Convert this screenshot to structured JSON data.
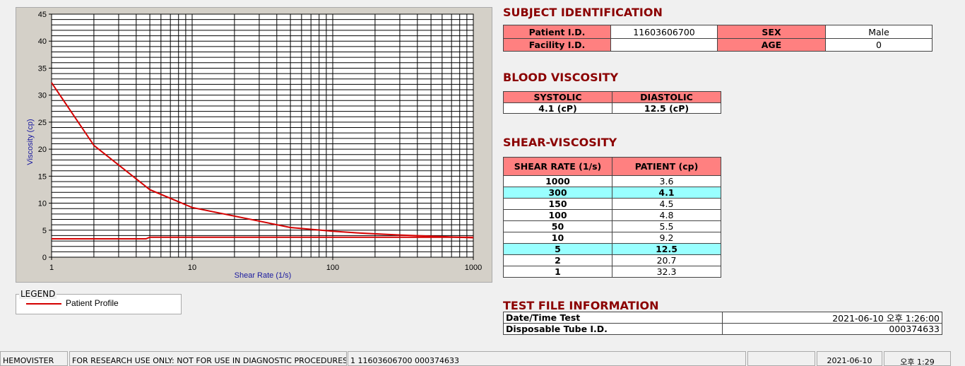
{
  "chart_data": {
    "type": "line",
    "y_label": "Viscosity (cp)",
    "x_label": "Shear Rate (1/s)",
    "xlog": true,
    "xlim": [
      1,
      1000
    ],
    "xticks": [
      1,
      10,
      100,
      1000
    ],
    "xminorticks": [
      2,
      3,
      4,
      5,
      6,
      7,
      8,
      9,
      20,
      30,
      40,
      50,
      60,
      70,
      80,
      90,
      200,
      300,
      400,
      500,
      600,
      700,
      800,
      900
    ],
    "ylim": [
      0,
      45
    ],
    "yticks": [
      0,
      5,
      10,
      15,
      20,
      25,
      30,
      35,
      40,
      45
    ],
    "yminorticks": [
      1,
      2,
      3,
      4,
      6,
      7,
      8,
      9,
      11,
      12,
      13,
      14,
      16,
      17,
      18,
      19,
      21,
      22,
      23,
      24,
      26,
      27,
      28,
      29,
      31,
      32,
      33,
      34,
      36,
      37,
      38,
      39,
      41,
      42,
      43,
      44
    ],
    "grid": true,
    "legend_title": "LEGEND",
    "series": [
      {
        "name": "Patient Profile",
        "color": "#d40000",
        "x": [
          1,
          2,
          5,
          10,
          50,
          100,
          150,
          300,
          1000
        ],
        "values": [
          32.3,
          20.7,
          12.5,
          9.2,
          5.5,
          4.8,
          4.5,
          4.1,
          3.6
        ]
      },
      {
        "color": "#d40000",
        "x": [
          1,
          4.7,
          5,
          1000
        ],
        "values": [
          3.4,
          3.4,
          3.7,
          3.7
        ]
      }
    ]
  },
  "subject": {
    "title": "SUBJECT IDENTIFICATION",
    "patient_label": "Patient I.D.",
    "patient_id": "11603606700",
    "sex_label": "SEX",
    "sex": "Male",
    "facility_label": "Facility I.D.",
    "age_label": "AGE",
    "age": 0
  },
  "blood": {
    "title": "BLOOD VISCOSITY",
    "headers": [
      "SYSTOLIC",
      "DIASTOLIC"
    ],
    "values": [
      "4.1 (cP)",
      "12.5 (cP)"
    ]
  },
  "shear": {
    "title": "SHEAR-VISCOSITY",
    "headers": [
      "SHEAR RATE (1/s)",
      "PATIENT (cp)"
    ],
    "rows": [
      [
        1000,
        3.6
      ],
      [
        300,
        4.1
      ],
      [
        150,
        4.5
      ],
      [
        100,
        4.8
      ],
      [
        50,
        5.5
      ],
      [
        10,
        9.2
      ],
      [
        5,
        12.5
      ],
      [
        2,
        20.7
      ],
      [
        1,
        32.3
      ]
    ],
    "highlight_rows": [
      1,
      6
    ]
  },
  "test_file": {
    "title": "TEST FILE INFORMATION",
    "rows": [
      [
        "Date/Time Test",
        "2021-06-10   오후 1:26:00"
      ],
      [
        "Disposable Tube I.D.",
        "000374633"
      ]
    ]
  },
  "status_bar": [
    "HEMOVISTER",
    "FOR RESEARCH USE ONLY: NOT FOR USE IN DIAGNOSTIC PROCEDURES",
    "1  11603606700  000374633",
    "2021-06-10",
    "오후 1:29"
  ]
}
